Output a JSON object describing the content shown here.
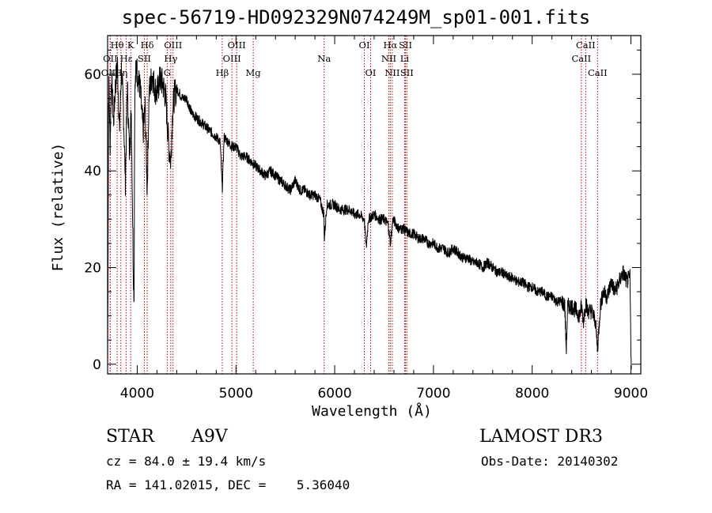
{
  "header": {
    "title": "spec-56719-HD092329N074249M_sp01-001.fits"
  },
  "info": {
    "obj_class": "STAR",
    "subclass": "A9V",
    "survey": "LAMOST DR3",
    "cz": "cz = 84.0 ± 19.4 km/s",
    "obs_date": "Obs-Date: 20140302",
    "radec": "RA = 141.02015, DEC =    5.36040"
  },
  "colors": {
    "line": "#000000",
    "marker": "#c00000"
  },
  "chart_data": {
    "type": "line",
    "title": "spec-56719-HD092329N074249M_sp01-001.fits",
    "xlabel": "Wavelength (Å)",
    "ylabel": "Flux (relative)",
    "xlim": [
      3700,
      9100
    ],
    "ylim": [
      -2,
      68
    ],
    "xticks": [
      4000,
      5000,
      6000,
      7000,
      8000,
      9000
    ],
    "yticks": [
      0,
      20,
      40,
      60
    ],
    "grid": false,
    "series": [
      {
        "name": "flux",
        "x": [
          3700,
          3705,
          3710,
          3715,
          3725,
          3740,
          3760,
          3780,
          3800,
          3820,
          3840,
          3860,
          3880,
          3900,
          3920,
          3940,
          3960,
          3968,
          3975,
          3990,
          4010,
          4030,
          4060,
          4080,
          4101,
          4120,
          4150,
          4180,
          4200,
          4230,
          4260,
          4290,
          4320,
          4340,
          4360,
          4380,
          4400,
          4430,
          4460,
          4500,
          4550,
          4600,
          4650,
          4700,
          4750,
          4800,
          4840,
          4861,
          4880,
          4920,
          4960,
          5000,
          5050,
          5100,
          5150,
          5200,
          5250,
          5300,
          5350,
          5400,
          5450,
          5500,
          5550,
          5600,
          5650,
          5700,
          5750,
          5800,
          5850,
          5890,
          5896,
          5920,
          5950,
          6000,
          6050,
          6100,
          6150,
          6200,
          6250,
          6300,
          6320,
          6340,
          6400,
          6450,
          6500,
          6540,
          6563,
          6590,
          6620,
          6650,
          6700,
          6750,
          6800,
          6850,
          6900,
          6950,
          7000,
          7050,
          7100,
          7150,
          7200,
          7250,
          7300,
          7350,
          7400,
          7450,
          7500,
          7550,
          7600,
          7650,
          7700,
          7750,
          7800,
          7850,
          7900,
          7950,
          8000,
          8050,
          8100,
          8150,
          8200,
          8250,
          8300,
          8330,
          8345,
          8360,
          8400,
          8450,
          8480,
          8498,
          8520,
          8542,
          8560,
          8600,
          8640,
          8662,
          8690,
          8720,
          8760,
          8800,
          8840,
          8880,
          8920,
          8960,
          8990,
          9000,
          9005
        ],
        "flux": [
          0,
          22,
          54,
          58,
          45,
          60,
          50,
          58,
          62,
          48,
          61,
          53,
          38,
          58,
          44,
          52,
          20,
          14,
          55,
          62,
          59,
          57,
          48,
          53,
          36,
          56,
          60,
          57,
          56,
          59,
          58,
          55,
          45,
          42,
          53,
          56,
          57,
          56,
          55,
          55,
          52,
          51,
          50,
          49,
          48,
          47,
          46,
          36,
          47,
          46,
          45,
          45,
          43,
          43,
          42,
          41,
          40,
          39,
          40,
          39,
          38,
          37,
          36,
          38,
          36,
          36,
          35,
          35,
          34,
          31,
          26,
          33,
          33,
          33,
          32,
          32,
          32,
          31,
          31,
          30,
          24,
          30,
          31,
          30,
          30,
          29,
          25,
          30,
          29,
          28,
          28,
          27,
          27,
          26,
          26,
          25,
          25,
          24,
          24,
          23,
          24,
          23,
          22,
          22,
          21,
          21,
          20,
          21,
          20,
          19,
          19,
          18,
          18,
          17,
          17,
          16,
          16,
          15,
          15,
          14,
          14,
          13,
          13,
          12,
          3,
          12,
          12,
          11,
          10,
          12,
          9,
          13,
          11,
          11,
          9,
          3,
          12,
          15,
          14,
          17,
          15,
          17,
          19,
          17,
          18,
          3,
          0
        ]
      }
    ],
    "lines": [
      {
        "name": "Hθ",
        "wave": 3797,
        "row": 1
      },
      {
        "name": "K",
        "wave": 3934,
        "row": 1
      },
      {
        "name": "Hδ",
        "wave": 4101,
        "row": 1
      },
      {
        "name": "OIII",
        "wave": 4363,
        "row": 1
      },
      {
        "name": "OIII",
        "wave": 5007,
        "row": 1
      },
      {
        "name": "OI",
        "wave": 6300,
        "row": 1
      },
      {
        "name": "Hα",
        "wave": 6563,
        "row": 1
      },
      {
        "name": "SII",
        "wave": 6717,
        "row": 1
      },
      {
        "name": "CaII",
        "wave": 8542,
        "row": 1
      },
      {
        "name": "OII",
        "wave": 3727,
        "row": 2
      },
      {
        "name": "Hε",
        "wave": 3889,
        "row": 2
      },
      {
        "name": "SII",
        "wave": 4072,
        "row": 2
      },
      {
        "name": "Hγ",
        "wave": 4340,
        "row": 2
      },
      {
        "name": "OIII",
        "wave": 4959,
        "row": 2
      },
      {
        "name": "Na",
        "wave": 5893,
        "row": 2
      },
      {
        "name": "NII",
        "wave": 6548,
        "row": 2
      },
      {
        "name": "Li",
        "wave": 6708,
        "row": 2
      },
      {
        "name": "CaII",
        "wave": 8498,
        "row": 2
      },
      {
        "name": "OIII",
        "wave": 3726,
        "row": 3
      },
      {
        "name": "Hη",
        "wave": 3835,
        "row": 3
      },
      {
        "name": "G",
        "wave": 4304,
        "row": 3
      },
      {
        "name": "Hβ",
        "wave": 4861,
        "row": 3
      },
      {
        "name": "Mg",
        "wave": 5175,
        "row": 3
      },
      {
        "name": "OI",
        "wave": 6364,
        "row": 3
      },
      {
        "name": "NII",
        "wave": 6583,
        "row": 3
      },
      {
        "name": "SII",
        "wave": 6731,
        "row": 3
      },
      {
        "name": "CaII",
        "wave": 8662,
        "row": 3
      }
    ]
  }
}
